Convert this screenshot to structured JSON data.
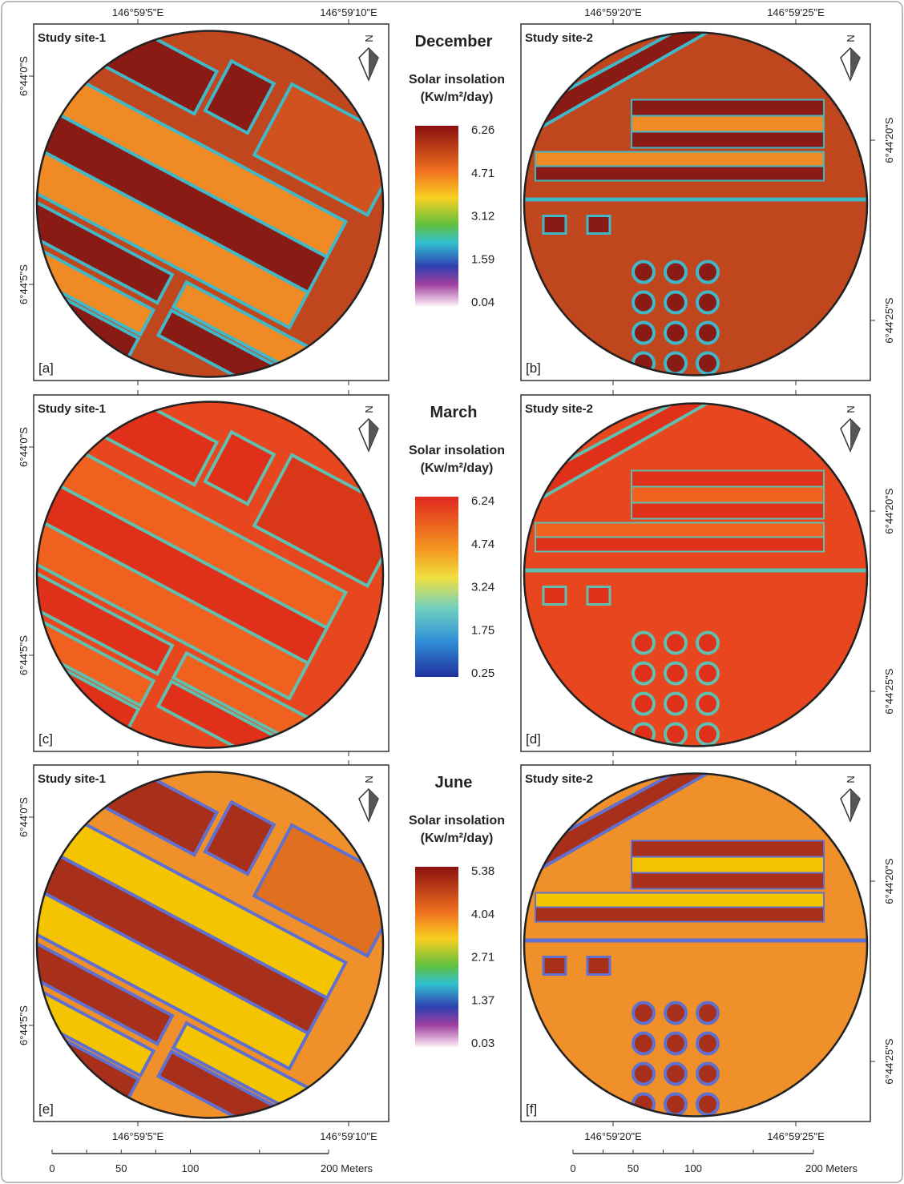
{
  "panels": [
    {
      "site": "Study site-1",
      "label": "[a]"
    },
    {
      "site": "Study site-2",
      "label": "[b]"
    },
    {
      "site": "Study site-1",
      "label": "[c]"
    },
    {
      "site": "Study site-2",
      "label": "[d]"
    },
    {
      "site": "Study site-1",
      "label": "[e]"
    },
    {
      "site": "Study site-2",
      "label": "[f]"
    }
  ],
  "months": [
    {
      "name": "December",
      "legend_title": "Solar insolation",
      "legend_unit": "(Kw/m²/day)",
      "ticks": [
        6.26,
        4.71,
        3.12,
        1.59,
        0.04
      ]
    },
    {
      "name": "March",
      "legend_title": "Solar insolation",
      "legend_unit": "(Kw/m²/day)",
      "ticks": [
        6.24,
        4.74,
        3.24,
        1.75,
        0.25
      ]
    },
    {
      "name": "June",
      "legend_title": "Solar insolation",
      "legend_unit": "(Kw/m²/day)",
      "ticks": [
        5.38,
        4.04,
        2.71,
        1.37,
        0.03
      ]
    }
  ],
  "coordinates": {
    "lon_left": [
      "146°59'5\"E",
      "146°59'10\"E"
    ],
    "lon_right": [
      "146°59'20\"E",
      "146°59'25\"E"
    ],
    "lat_left": [
      "6°44'0\"S",
      "6°44'5\"S"
    ],
    "lat_right": [
      "6°44'20\"S",
      "6°44'25\"S"
    ]
  },
  "north_arrow": "N",
  "scale_bar": {
    "labels": [
      "0",
      "50",
      "100",
      "200 Meters"
    ]
  }
}
